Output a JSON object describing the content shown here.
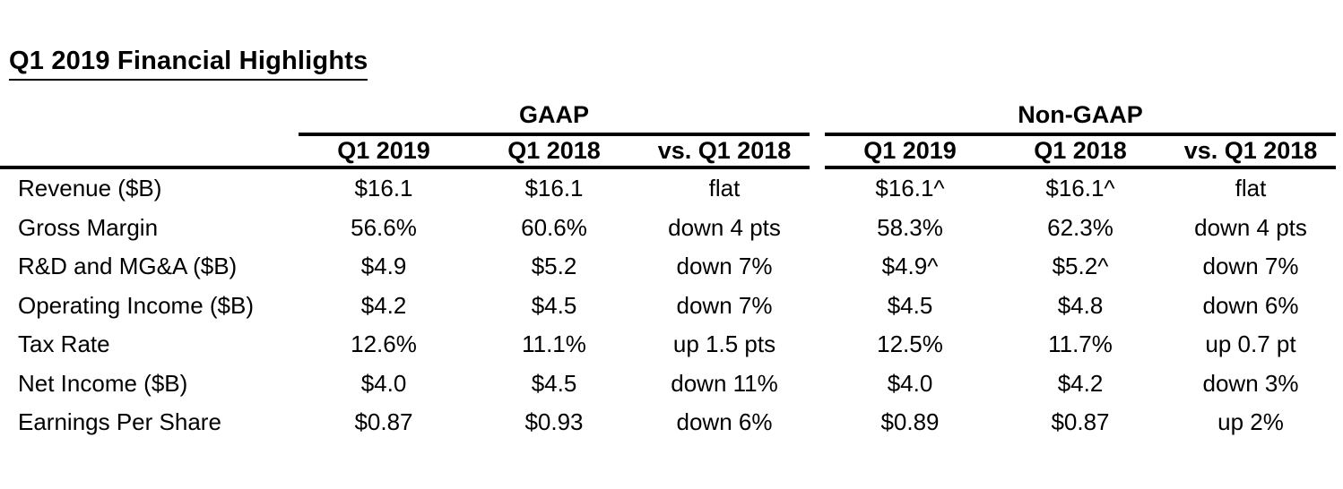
{
  "title": "Q1 2019 Financial Highlights",
  "table": {
    "groups": [
      {
        "label": "GAAP",
        "columns": [
          "Q1 2019",
          "Q1 2018",
          "vs. Q1 2018"
        ]
      },
      {
        "label": "Non-GAAP",
        "columns": [
          "Q1 2019",
          "Q1 2018",
          "vs. Q1 2018"
        ]
      }
    ],
    "rows": [
      {
        "label": "Revenue ($B)",
        "gaap": [
          "$16.1",
          "$16.1",
          "flat"
        ],
        "non_gaap": [
          "$16.1^",
          "$16.1^",
          "flat"
        ]
      },
      {
        "label": "Gross Margin",
        "gaap": [
          "56.6%",
          "60.6%",
          "down 4 pts"
        ],
        "non_gaap": [
          "58.3%",
          "62.3%",
          "down 4 pts"
        ]
      },
      {
        "label": "R&D and MG&A ($B)",
        "gaap": [
          "$4.9",
          "$5.2",
          "down 7%"
        ],
        "non_gaap": [
          "$4.9^",
          "$5.2^",
          "down 7%"
        ]
      },
      {
        "label": "Operating Income ($B)",
        "gaap": [
          "$4.2",
          "$4.5",
          "down 7%"
        ],
        "non_gaap": [
          "$4.5",
          "$4.8",
          "down 6%"
        ]
      },
      {
        "label": "Tax Rate",
        "gaap": [
          "12.6%",
          "11.1%",
          "up 1.5 pts"
        ],
        "non_gaap": [
          "12.5%",
          "11.7%",
          "up 0.7 pt"
        ]
      },
      {
        "label": "Net Income ($B)",
        "gaap": [
          "$4.0",
          "$4.5",
          "down 11%"
        ],
        "non_gaap": [
          "$4.0",
          "$4.2",
          "down 3%"
        ]
      },
      {
        "label": "Earnings Per Share",
        "gaap": [
          "$0.87",
          "$0.93",
          "down 6%"
        ],
        "non_gaap": [
          "$0.89",
          "$0.87",
          "up 2%"
        ]
      }
    ]
  },
  "colors": {
    "text": "#000000",
    "background": "#ffffff",
    "rule": "#000000"
  }
}
